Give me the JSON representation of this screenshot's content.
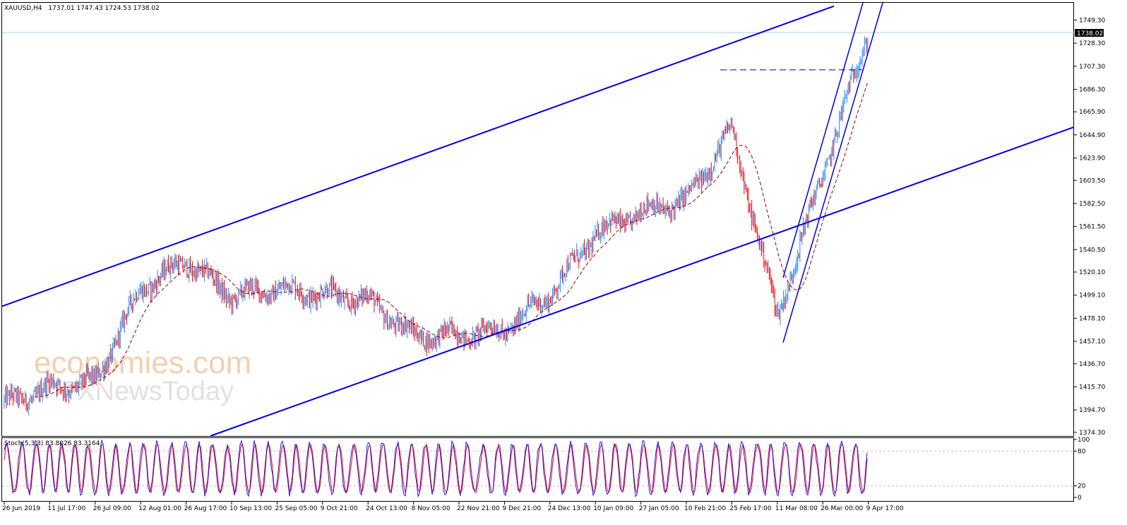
{
  "header": {
    "symbol": "XAUUSD,H4",
    "ohlc": "1737.01 1747.43 1724.53 1738.02"
  },
  "stochastic": {
    "header": "Stoch(5,3,3) 83.8026 83.3164",
    "k_color": "#1a1aff",
    "d_color": "#ff0000",
    "levels": [
      "100",
      "80",
      "20",
      "0"
    ]
  },
  "watermark": {
    "line1": "economies.com",
    "line2": "FXNewsToday"
  },
  "current_price_label": "1738.02",
  "colors": {
    "bull_candle": "#1e88ff",
    "bear_candle": "#ff0000",
    "channel_lines": "#0000dd",
    "moving_average": "#8b0000",
    "current_price_line": "#a8d2ea",
    "grid": "#c0c0c0"
  },
  "chart_data": {
    "type": "candlestick",
    "title": "XAUUSD,H4",
    "y_axis": {
      "ticks": [
        "1749.30",
        "1728.30",
        "1707.30",
        "1686.30",
        "1665.90",
        "1644.90",
        "1623.90",
        "1603.50",
        "1582.50",
        "1561.50",
        "1540.50",
        "1520.10",
        "1499.10",
        "1478.10",
        "1457.10",
        "1436.70",
        "1415.70",
        "1394.70",
        "1374.30"
      ],
      "range": [
        1371,
        1765
      ]
    },
    "x_axis": {
      "ticks": [
        "26 Jun 2019",
        "11 Jul 17:00",
        "26 Jul 09:00",
        "12 Aug 01:00",
        "26 Aug 17:00",
        "10 Sep 13:00",
        "25 Sep 05:00",
        "9 Oct 21:00",
        "24 Oct 13:00",
        "8 Nov 05:00",
        "22 Nov 21:00",
        "9 Dec 21:00",
        "24 Dec 13:00",
        "10 Jan 09:00",
        "27 Jan 05:00",
        "10 Feb 21:00",
        "25 Feb 17:00",
        "11 Mar 08:00",
        "26 Mar 00:00",
        "9 Apr 17:00"
      ]
    },
    "price_path": [
      {
        "date": "26 Jun 2019",
        "price": 1400
      },
      {
        "date": "11 Jul 17:00",
        "price": 1415
      },
      {
        "date": "26 Jul 09:00",
        "price": 1420
      },
      {
        "date": "12 Aug 01:00",
        "price": 1505
      },
      {
        "date": "26 Aug 17:00",
        "price": 1530
      },
      {
        "date": "10 Sep 13:00",
        "price": 1498
      },
      {
        "date": "25 Sep 05:00",
        "price": 1505
      },
      {
        "date": "9 Oct 21:00",
        "price": 1500
      },
      {
        "date": "24 Oct 13:00",
        "price": 1495
      },
      {
        "date": "8 Nov 05:00",
        "price": 1462
      },
      {
        "date": "22 Nov 21:00",
        "price": 1463
      },
      {
        "date": "9 Dec 21:00",
        "price": 1467
      },
      {
        "date": "24 Dec 13:00",
        "price": 1500
      },
      {
        "date": "10 Jan 09:00",
        "price": 1555
      },
      {
        "date": "27 Jan 05:00",
        "price": 1575
      },
      {
        "date": "10 Feb 21:00",
        "price": 1585
      },
      {
        "date": "25 Feb 17:00",
        "price": 1650
      },
      {
        "date": "11 Mar 08:00",
        "price": 1480
      },
      {
        "date": "26 Mar 00:00",
        "price": 1610
      },
      {
        "date": "9 Apr 17:00",
        "price": 1738
      }
    ],
    "last_price": 1738.02,
    "resistance_level": 1704,
    "stoch_levels": [
      20,
      80
    ]
  }
}
